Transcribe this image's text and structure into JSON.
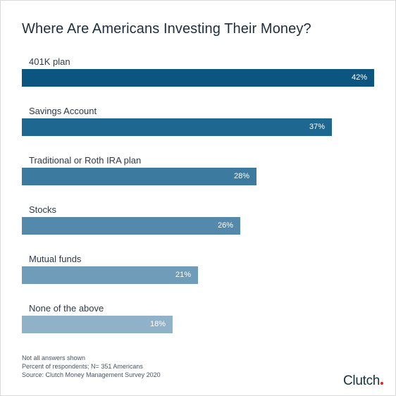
{
  "title": "Where Are Americans Investing Their Money?",
  "chart_data": {
    "type": "bar",
    "orientation": "horizontal",
    "categories": [
      "401K plan",
      "Savings Account",
      "Traditional or Roth IRA plan",
      "Stocks",
      "Mutual funds",
      "None of the above"
    ],
    "values": [
      42,
      37,
      28,
      26,
      21,
      18
    ],
    "value_labels": [
      "42%",
      "37%",
      "28%",
      "26%",
      "21%",
      "18%"
    ],
    "bar_colors": [
      "#0b5580",
      "#1e6790",
      "#3c7a9f",
      "#5489ab",
      "#6f9cb8",
      "#8fb2c8"
    ],
    "xlim": [
      0,
      42
    ],
    "grid": false,
    "legend": "none"
  },
  "notes": [
    "Not all answers shown",
    "Percent of respondents; N= 351 Americans",
    "Source: Clutch Money Management Survey 2020"
  ],
  "logo": {
    "text": "Clutch",
    "dot_color": "#e62415"
  }
}
